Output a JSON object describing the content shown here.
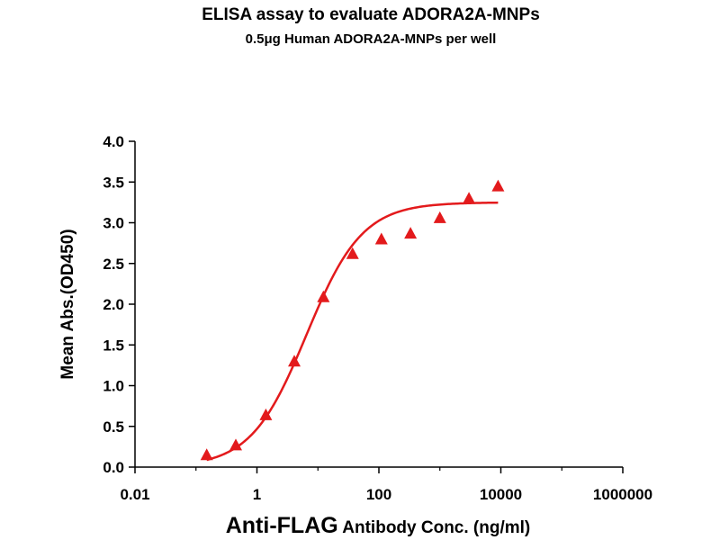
{
  "chart_data": {
    "type": "scatter",
    "title": "ELISA assay to evaluate ADORA2A-MNPs",
    "subtitle": "0.5μg Human ADORA2A-MNPs per well",
    "xlabel_main": "Anti-FLAG",
    "xlabel_rest": " Antibody Conc. (ng/ml)",
    "ylabel": "Mean Abs.(OD450)",
    "x_scale": "log10",
    "xlim": [
      0.01,
      1000000
    ],
    "ylim": [
      0,
      4.0
    ],
    "x_ticks": [
      0.01,
      1,
      100,
      10000,
      1000000
    ],
    "x_tick_labels": [
      "0.01",
      "1",
      "100",
      "10000",
      "1000000"
    ],
    "y_ticks": [
      0,
      0.5,
      1.0,
      1.5,
      2.0,
      2.5,
      3.0,
      3.5,
      4.0
    ],
    "y_tick_labels": [
      "0.0",
      "0.5",
      "1.0",
      "1.5",
      "2.0",
      "2.5",
      "3.0",
      "3.5",
      "4.0"
    ],
    "grid": false,
    "series": [
      {
        "marker": "triangle",
        "color": "#e31a1c",
        "x": [
          0.15,
          0.45,
          1.4,
          4.1,
          12.3,
          37,
          110,
          330,
          1000,
          3000,
          9000
        ],
        "y": [
          0.14,
          0.26,
          0.63,
          1.29,
          2.08,
          2.61,
          2.79,
          2.86,
          3.05,
          3.29,
          3.44
        ]
      }
    ],
    "fit_curve": {
      "color": "#e31a1c",
      "x_range": [
        0.15,
        9000
      ],
      "bottom": 0.0,
      "top": 3.25,
      "ec50": 6.5,
      "hill": 0.95
    }
  }
}
